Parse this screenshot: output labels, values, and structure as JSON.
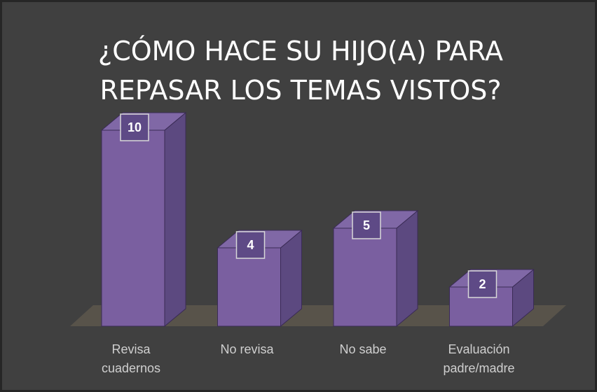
{
  "chart_data": {
    "type": "bar3d",
    "title": "¿CÓMO HACE SU HIJO(A) PARA REPASAR LOS TEMAS VISTOS?",
    "categories": [
      "Revisa cuadernos",
      "No revisa",
      "No sabe",
      "Evaluación padre/madre"
    ],
    "values": [
      10,
      4,
      5,
      2
    ],
    "color": "#7a5fa0",
    "ylim": [
      0,
      10
    ]
  }
}
